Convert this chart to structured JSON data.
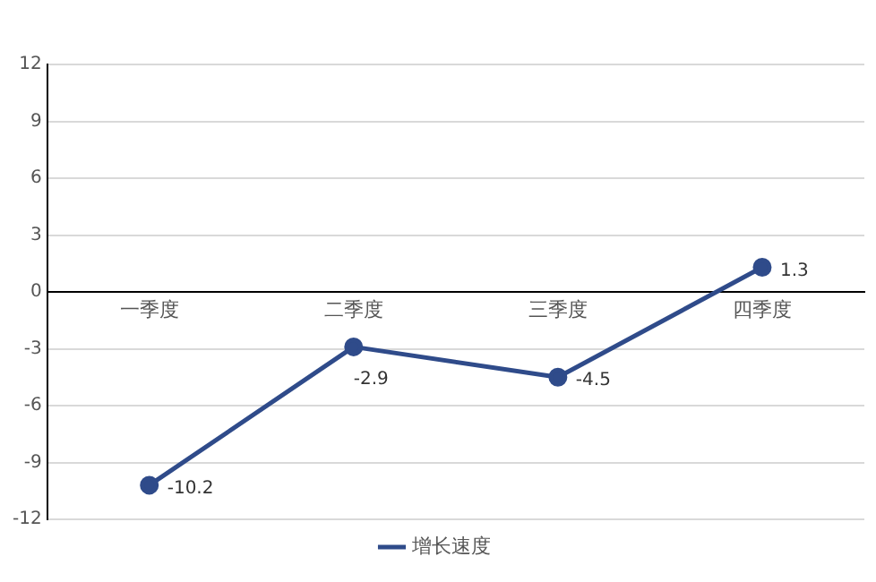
{
  "chart_data": {
    "type": "line",
    "categories": [
      "一季度",
      "二季度",
      "三季度",
      "四季度"
    ],
    "series": [
      {
        "name": "增长速度",
        "color": "#2f4b8a",
        "values": [
          -10.2,
          -2.9,
          -4.5,
          1.3
        ]
      }
    ],
    "ylim": [
      -12,
      12
    ],
    "yticks": [
      -12,
      -9,
      -6,
      -3,
      0,
      3,
      6,
      9,
      12
    ],
    "grid": "y",
    "legend": "bottom",
    "marker": "circle",
    "line_style": "solid",
    "data_labels": true
  }
}
